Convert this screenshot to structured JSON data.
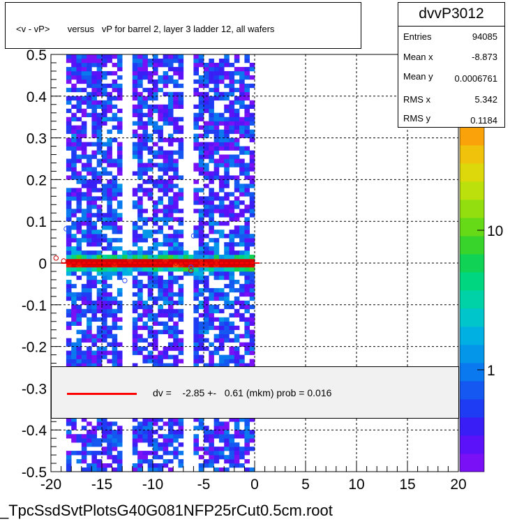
{
  "title": "<v - vP>       versus   vP for barrel 2, layer 3 ladder 12, all wafers",
  "stats": {
    "name": "dvvP3012",
    "rows": [
      {
        "label": "Entries",
        "value": "94085"
      },
      {
        "label": "Mean x",
        "value": "-8.873"
      },
      {
        "label": "Mean y",
        "value": "0.0006761"
      },
      {
        "label": "RMS x",
        "value": "5.342"
      },
      {
        "label": "RMS y",
        "value": "0.1184"
      }
    ]
  },
  "legend": {
    "text": "dv =    -2.85 +-   0.61 (mkm) prob = 0.016",
    "line_color": "#ff0000"
  },
  "file_label": "_TpcSsdSvtPlotsG40G081NFP25rCut0.5cm.root",
  "chart_data": {
    "type": "heatmap",
    "xlim": [
      -20,
      20
    ],
    "ylim": [
      -0.5,
      0.5
    ],
    "x_ticks": [
      "-20",
      "-15",
      "-10",
      "-5",
      "0",
      "5",
      "10",
      "15",
      "20"
    ],
    "y_ticks": [
      "-0.5",
      "-0.4",
      "-0.3",
      "-0.2",
      "-0.1",
      "0",
      "0.1",
      "0.2",
      "0.3",
      "0.4",
      "0.5"
    ],
    "z_scale": "log",
    "z_ticks": [
      "1",
      "10"
    ],
    "grid": true,
    "filled_x_range": [
      -18.5,
      0
    ],
    "gaps_x": [
      -12.5,
      -6.5
    ],
    "profile_points": [
      {
        "x": -19.5,
        "y": 0.012
      },
      {
        "x": -18.75,
        "y": 0.005
      },
      {
        "x": -18.25,
        "y": 0.002
      },
      {
        "x": -17.75,
        "y": 0.001
      },
      {
        "x": -17.25,
        "y": 0.0
      },
      {
        "x": -16.75,
        "y": 0.002
      },
      {
        "x": -16.25,
        "y": 0.001
      },
      {
        "x": -15.75,
        "y": 0.0
      },
      {
        "x": -15.25,
        "y": 0.001
      },
      {
        "x": -14.75,
        "y": 0.0
      },
      {
        "x": -14.25,
        "y": 0.0
      },
      {
        "x": -13.75,
        "y": 0.0
      },
      {
        "x": -13.25,
        "y": 0.001
      },
      {
        "x": -12.75,
        "y": 0.0
      },
      {
        "x": -12.25,
        "y": 0.0
      },
      {
        "x": -11.75,
        "y": 0.0
      },
      {
        "x": -11.25,
        "y": 0.0
      },
      {
        "x": -10.75,
        "y": 0.0
      },
      {
        "x": -10.25,
        "y": 0.0
      },
      {
        "x": -9.75,
        "y": 0.0
      },
      {
        "x": -9.25,
        "y": 0.0
      },
      {
        "x": -8.75,
        "y": 0.0
      },
      {
        "x": -8.25,
        "y": 0.0
      },
      {
        "x": -7.75,
        "y": 0.0
      },
      {
        "x": -7.25,
        "y": 0.0
      },
      {
        "x": -6.75,
        "y": 0.0
      },
      {
        "x": -6.25,
        "y": -0.018
      },
      {
        "x": -5.75,
        "y": 0.0
      },
      {
        "x": -5.25,
        "y": 0.0
      },
      {
        "x": -4.75,
        "y": 0.0
      },
      {
        "x": -4.25,
        "y": 0.0
      },
      {
        "x": -3.75,
        "y": 0.0
      },
      {
        "x": -3.25,
        "y": 0.0
      },
      {
        "x": -2.75,
        "y": 0.0
      },
      {
        "x": -2.25,
        "y": 0.0
      },
      {
        "x": -1.75,
        "y": 0.0
      },
      {
        "x": -1.25,
        "y": 0.0
      },
      {
        "x": -0.75,
        "y": 0.0
      },
      {
        "x": -0.25,
        "y": 0.001
      }
    ],
    "outlier_points": [
      {
        "x": -18.5,
        "y": 0.082
      },
      {
        "x": -12.75,
        "y": -0.042
      },
      {
        "x": -12.25,
        "y": 0.025
      },
      {
        "x": -6.0,
        "y": 0.065
      },
      {
        "x": -6.25,
        "y": -0.01
      },
      {
        "x": -0.25,
        "y": -0.042
      }
    ],
    "fit_line": {
      "x": [
        -19,
        0.5
      ],
      "y": [
        0.0,
        0.0
      ]
    }
  }
}
